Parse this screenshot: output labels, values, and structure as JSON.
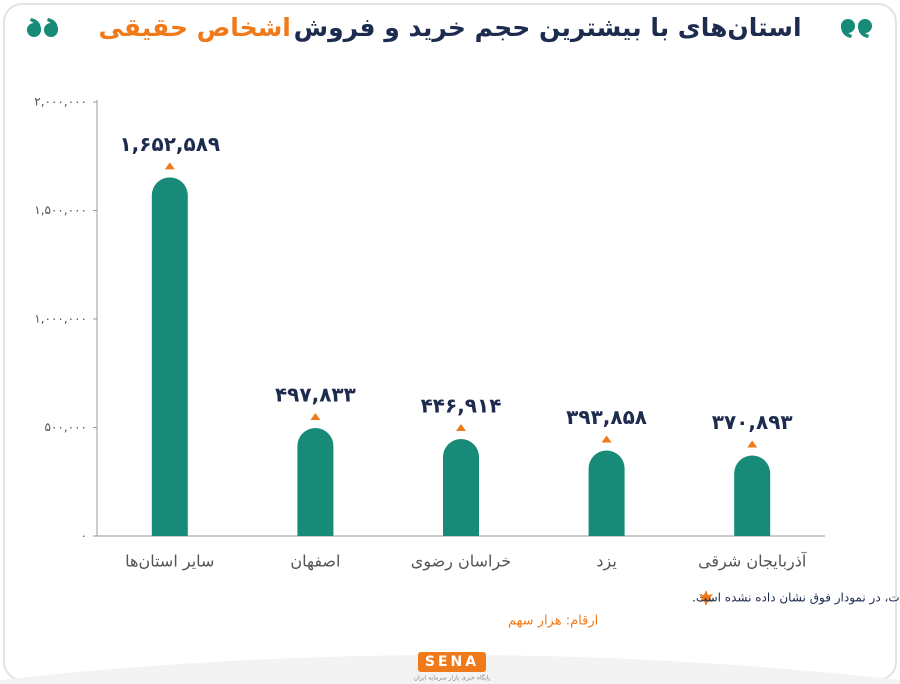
{
  "header": {
    "title": "استان‌های با بیشترین حجم خرید و فروش",
    "title_highlight": "اشخاص حقیقی"
  },
  "chart_data": {
    "type": "bar",
    "categories": [
      "سایر استان‌ها",
      "اصفهان",
      "خراسان رضوی",
      "یزد",
      "آذربایجان شرقی"
    ],
    "values": [
      1652589,
      497833,
      446914,
      393858,
      370893
    ],
    "value_labels": [
      "۱,۶۵۲,۵۸۹",
      "۴۹۷,۸۳۳",
      "۴۴۶,۹۱۴",
      "۳۹۳,۸۵۸",
      "۳۷۰,۸۹۳"
    ],
    "color": "#178a78",
    "ylim": [
      0,
      2000000
    ],
    "yticks": [
      {
        "value": 0,
        "label": "۰"
      },
      {
        "value": 500000,
        "label": "۵۰۰,۰۰۰"
      },
      {
        "value": 1000000,
        "label": "۱,۰۰۰,۰۰۰"
      },
      {
        "value": 1500000,
        "label": "۱,۵۰۰,۰۰۰"
      },
      {
        "value": 2000000,
        "label": "۲,۰۰۰,۰۰۰"
      }
    ],
    "grid": false
  },
  "footer": {
    "note": "استان تهران به دلیل نسبت بالا از کل حجم معاملات، در نمودار فوق نشان داده نشده است.",
    "units": "ارقام: هزار سهم",
    "logo": "SENA",
    "logo_subtitle": "پایگاه خبری بازار سرمایه ایران"
  }
}
